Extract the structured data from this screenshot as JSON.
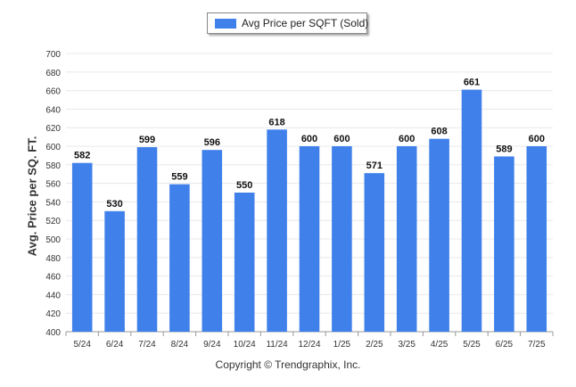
{
  "legend": {
    "label": "Avg Price per SQFT (Sold)"
  },
  "copyright": "Copyright © Trendgraphix, Inc.",
  "colors": {
    "bar": "#3f80ea",
    "grid": "#e8e8e8",
    "axis": "#555555"
  },
  "chart_data": {
    "type": "bar",
    "title": "",
    "xlabel": "",
    "ylabel": "Avg. Price per SQ. FT.",
    "categories": [
      "5/24",
      "6/24",
      "7/24",
      "8/24",
      "9/24",
      "10/24",
      "11/24",
      "12/24",
      "1/25",
      "2/25",
      "3/25",
      "4/25",
      "5/25",
      "6/25",
      "7/25"
    ],
    "series": [
      {
        "name": "Avg Price per SQFT (Sold)",
        "values": [
          582,
          530,
          599,
          559,
          596,
          550,
          618,
          600,
          600,
          571,
          600,
          608,
          661,
          589,
          600
        ]
      }
    ],
    "ylim": [
      400,
      700
    ],
    "yticks": [
      400,
      420,
      440,
      460,
      480,
      500,
      520,
      540,
      560,
      580,
      600,
      620,
      640,
      660,
      680,
      700
    ],
    "grid": true,
    "legend_position": "top-center",
    "data_labels": true
  }
}
